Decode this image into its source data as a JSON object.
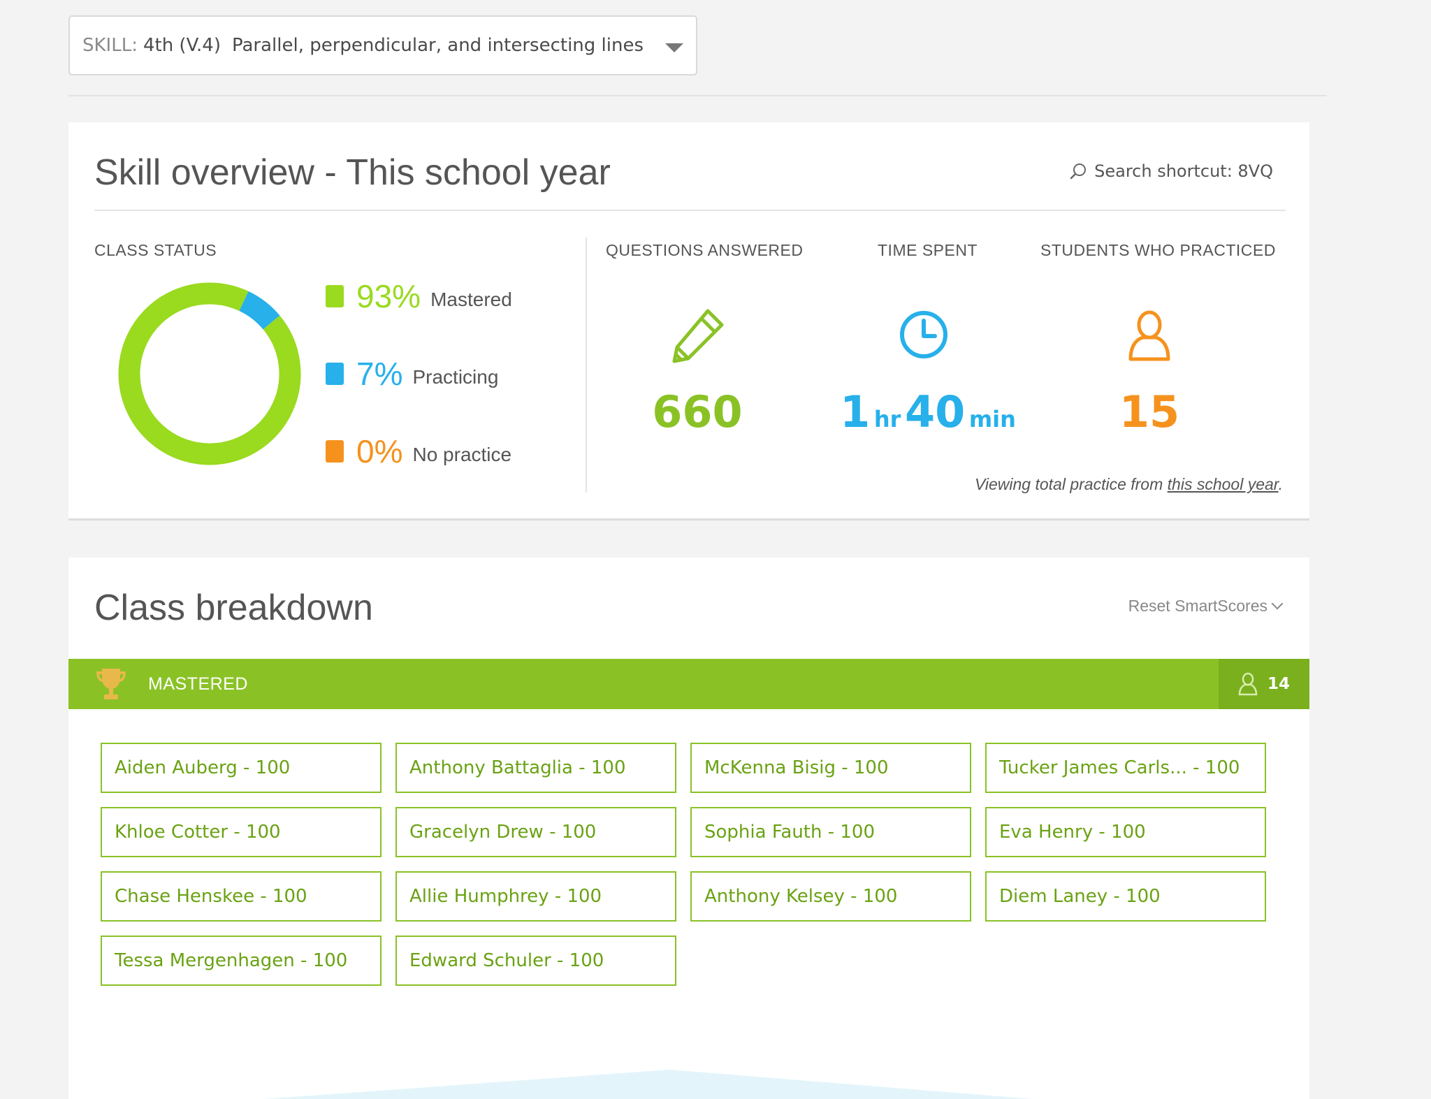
{
  "skill_select": {
    "label": "SKILL:",
    "grade": "4th (V.4)",
    "name": "Parallel, perpendicular, and intersecting lines"
  },
  "overview": {
    "title": "Skill overview - This school year",
    "search_shortcut": "Search shortcut: 8VQ",
    "class_status_label": "CLASS STATUS",
    "legend": [
      {
        "pct": "93%",
        "label": "Mastered",
        "color": "#9ada1f"
      },
      {
        "pct": "7%",
        "label": "Practicing",
        "color": "#27b0ea"
      },
      {
        "pct": "0%",
        "label": "No practice",
        "color": "#f5921e"
      }
    ],
    "donut": {
      "mastered": 0.93,
      "practicing": 0.07,
      "no_practice": 0.0
    },
    "questions_label": "QUESTIONS ANSWERED",
    "questions_value": "660",
    "time_label": "TIME SPENT",
    "time_hours": "1",
    "time_hr_unit": "hr",
    "time_minutes": "40",
    "time_min_unit": "min",
    "students_label": "STUDENTS WHO PRACTICED",
    "students_value": "15",
    "viewing_prefix": "Viewing total practice from ",
    "viewing_link": "this school year",
    "viewing_suffix": "."
  },
  "breakdown": {
    "title": "Class breakdown",
    "reset_label": "Reset SmartScores",
    "mastered_label": "MASTERED",
    "mastered_count": "14",
    "students": [
      "Aiden Auberg - 100",
      "Anthony Battaglia - 100",
      "McKenna Bisig - 100",
      "Tucker James Carls...  - 100",
      "Khloe Cotter - 100",
      "Gracelyn Drew - 100",
      "Sophia Fauth - 100",
      "Eva Henry - 100",
      "Chase Henskee - 100",
      "Allie Humphrey - 100",
      "Anthony Kelsey - 100",
      "Diem Laney - 100",
      "Tessa Mergenhagen - 100",
      "Edward Schuler - 100"
    ]
  },
  "colors": {
    "green": "#8ac226",
    "blue": "#27b0ea",
    "orange": "#f5921e"
  }
}
